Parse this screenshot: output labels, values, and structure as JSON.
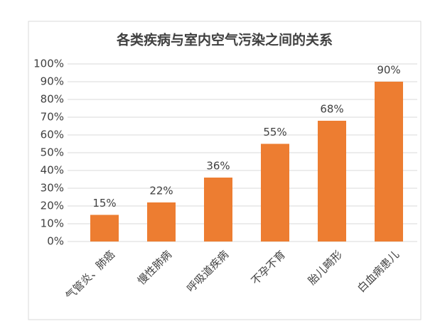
{
  "chart_data": {
    "type": "bar",
    "title": "各类疾病与室内空气污染之间的关系",
    "categories": [
      "气管炎、肺癌",
      "慢性肺病",
      "呼吸道疾病",
      "不孕不育",
      "胎儿畸形",
      "白血病患儿"
    ],
    "values": [
      15,
      22,
      36,
      55,
      68,
      90
    ],
    "value_labels": [
      "15%",
      "22%",
      "36%",
      "55%",
      "68%",
      "90%"
    ],
    "color": "#ed7d31",
    "ylim": [
      0,
      100
    ],
    "yticks": [
      {
        "value": 0,
        "label": "0%"
      },
      {
        "value": 10,
        "label": "10%"
      },
      {
        "value": 20,
        "label": "20%"
      },
      {
        "value": 30,
        "label": "30%"
      },
      {
        "value": 40,
        "label": "40%"
      },
      {
        "value": 50,
        "label": "50%"
      },
      {
        "value": 60,
        "label": "60%"
      },
      {
        "value": 70,
        "label": "70%"
      },
      {
        "value": 80,
        "label": "80%"
      },
      {
        "value": 90,
        "label": "90%"
      },
      {
        "value": 100,
        "label": "100%"
      }
    ],
    "grid": true
  }
}
